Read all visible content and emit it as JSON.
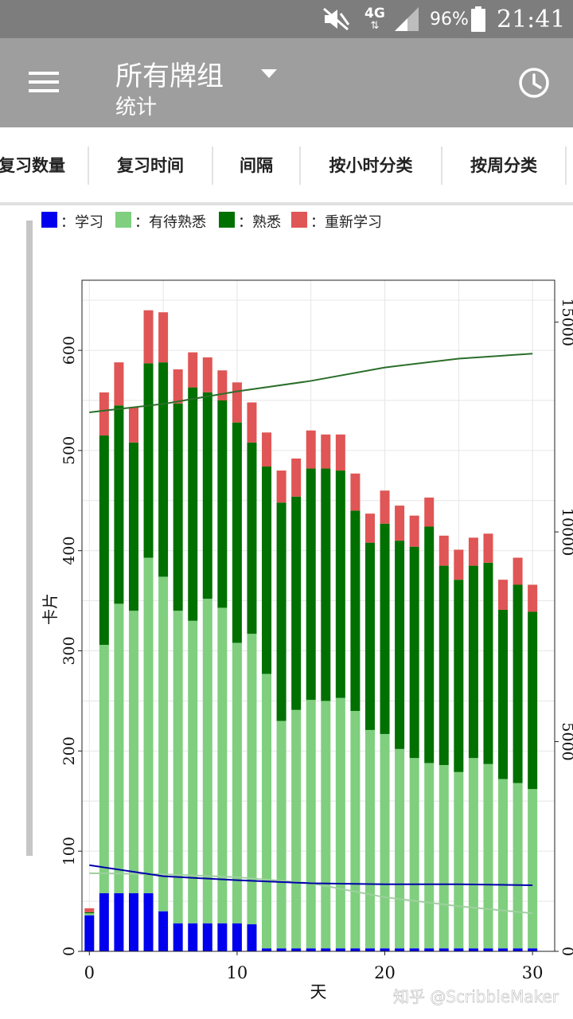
{
  "status_bar": {
    "network": "4G",
    "battery": "96%",
    "time": "21:41",
    "icons": [
      "mute-icon",
      "data-arrows-icon",
      "signal-icon",
      "battery-icon"
    ]
  },
  "app_bar": {
    "title": "所有牌组",
    "subtitle": "统计",
    "icons": [
      "menu-icon",
      "dropdown-caret-icon",
      "clock-icon"
    ]
  },
  "tabs": [
    "复习数量",
    "复习时间",
    "间隔",
    "按小时分类",
    "按周分类"
  ],
  "watermark": "知乎 @ScribbleMaker",
  "colors": {
    "learn": "#0000ee",
    "young": "#7fcf7f",
    "mature": "#007000",
    "relearn": "#e05555",
    "cumulative_line": "#2a6e2a",
    "young_line": "#9fcf9f",
    "learn_line": "#0000aa"
  },
  "chart_data": {
    "type": "bar",
    "stacked": true,
    "legend": [
      {
        "name": "学习",
        "color": "#0000ee"
      },
      {
        "name": "有待熟悉",
        "color": "#7fcf7f"
      },
      {
        "name": "熟悉",
        "color": "#007000"
      },
      {
        "name": "重新学习",
        "color": "#e05555"
      }
    ],
    "legend_prefix": "：",
    "legend_position": "top",
    "xlabel": "天",
    "ylabel": "卡片",
    "xlim": [
      -0.5,
      31.5
    ],
    "ylim": [
      0,
      670
    ],
    "y2lim": [
      0,
      16000
    ],
    "xticks": [
      0,
      10,
      20,
      30
    ],
    "yticks": [
      0,
      100,
      200,
      300,
      400,
      500,
      600
    ],
    "y2ticks": [
      0,
      5000,
      10000,
      15000
    ],
    "grid": true,
    "x": [
      0,
      1,
      2,
      3,
      4,
      5,
      6,
      7,
      8,
      9,
      10,
      11,
      12,
      13,
      14,
      15,
      16,
      17,
      18,
      19,
      20,
      21,
      22,
      23,
      24,
      25,
      26,
      27,
      28,
      29,
      30
    ],
    "series": [
      {
        "name": "学习",
        "values": [
          36,
          58,
          58,
          58,
          58,
          40,
          28,
          28,
          28,
          28,
          28,
          27,
          3,
          3,
          3,
          3,
          3,
          3,
          3,
          3,
          3,
          3,
          3,
          3,
          3,
          3,
          3,
          3,
          3,
          3,
          3
        ]
      },
      {
        "name": "有待熟悉",
        "values": [
          2,
          248,
          289,
          282,
          335,
          334,
          312,
          302,
          324,
          315,
          280,
          290,
          274,
          227,
          238,
          248,
          247,
          250,
          237,
          218,
          214,
          199,
          190,
          185,
          183,
          176,
          190,
          184,
          169,
          165,
          159
        ]
      },
      {
        "name": "熟悉",
        "values": [
          1,
          209,
          198,
          168,
          194,
          214,
          207,
          233,
          206,
          207,
          220,
          191,
          207,
          218,
          213,
          231,
          232,
          227,
          200,
          187,
          210,
          208,
          211,
          236,
          199,
          192,
          192,
          201,
          169,
          198,
          177
        ]
      },
      {
        "name": "重新学习",
        "values": [
          4,
          43,
          43,
          35,
          53,
          50,
          34,
          35,
          35,
          30,
          40,
          40,
          34,
          32,
          38,
          38,
          34,
          36,
          37,
          29,
          33,
          35,
          31,
          29,
          30,
          30,
          28,
          29,
          30,
          27,
          27
        ]
      }
    ],
    "lines": [
      {
        "axis": "right",
        "color": "#2a6e2a",
        "x": [
          0,
          5,
          10,
          15,
          20,
          25,
          30
        ],
        "values": [
          12850,
          13050,
          13350,
          13600,
          13920,
          14130,
          14250
        ]
      },
      {
        "axis": "left",
        "color": "#9fcf9f",
        "x": [
          0,
          5,
          10,
          15,
          20,
          25,
          30
        ],
        "values": [
          78,
          77,
          74,
          68,
          54,
          45,
          38
        ]
      },
      {
        "axis": "left",
        "color": "#0000aa",
        "x": [
          0,
          5,
          10,
          15,
          20,
          25,
          30
        ],
        "values": [
          86,
          75,
          71,
          68,
          67,
          67,
          66
        ]
      }
    ]
  }
}
